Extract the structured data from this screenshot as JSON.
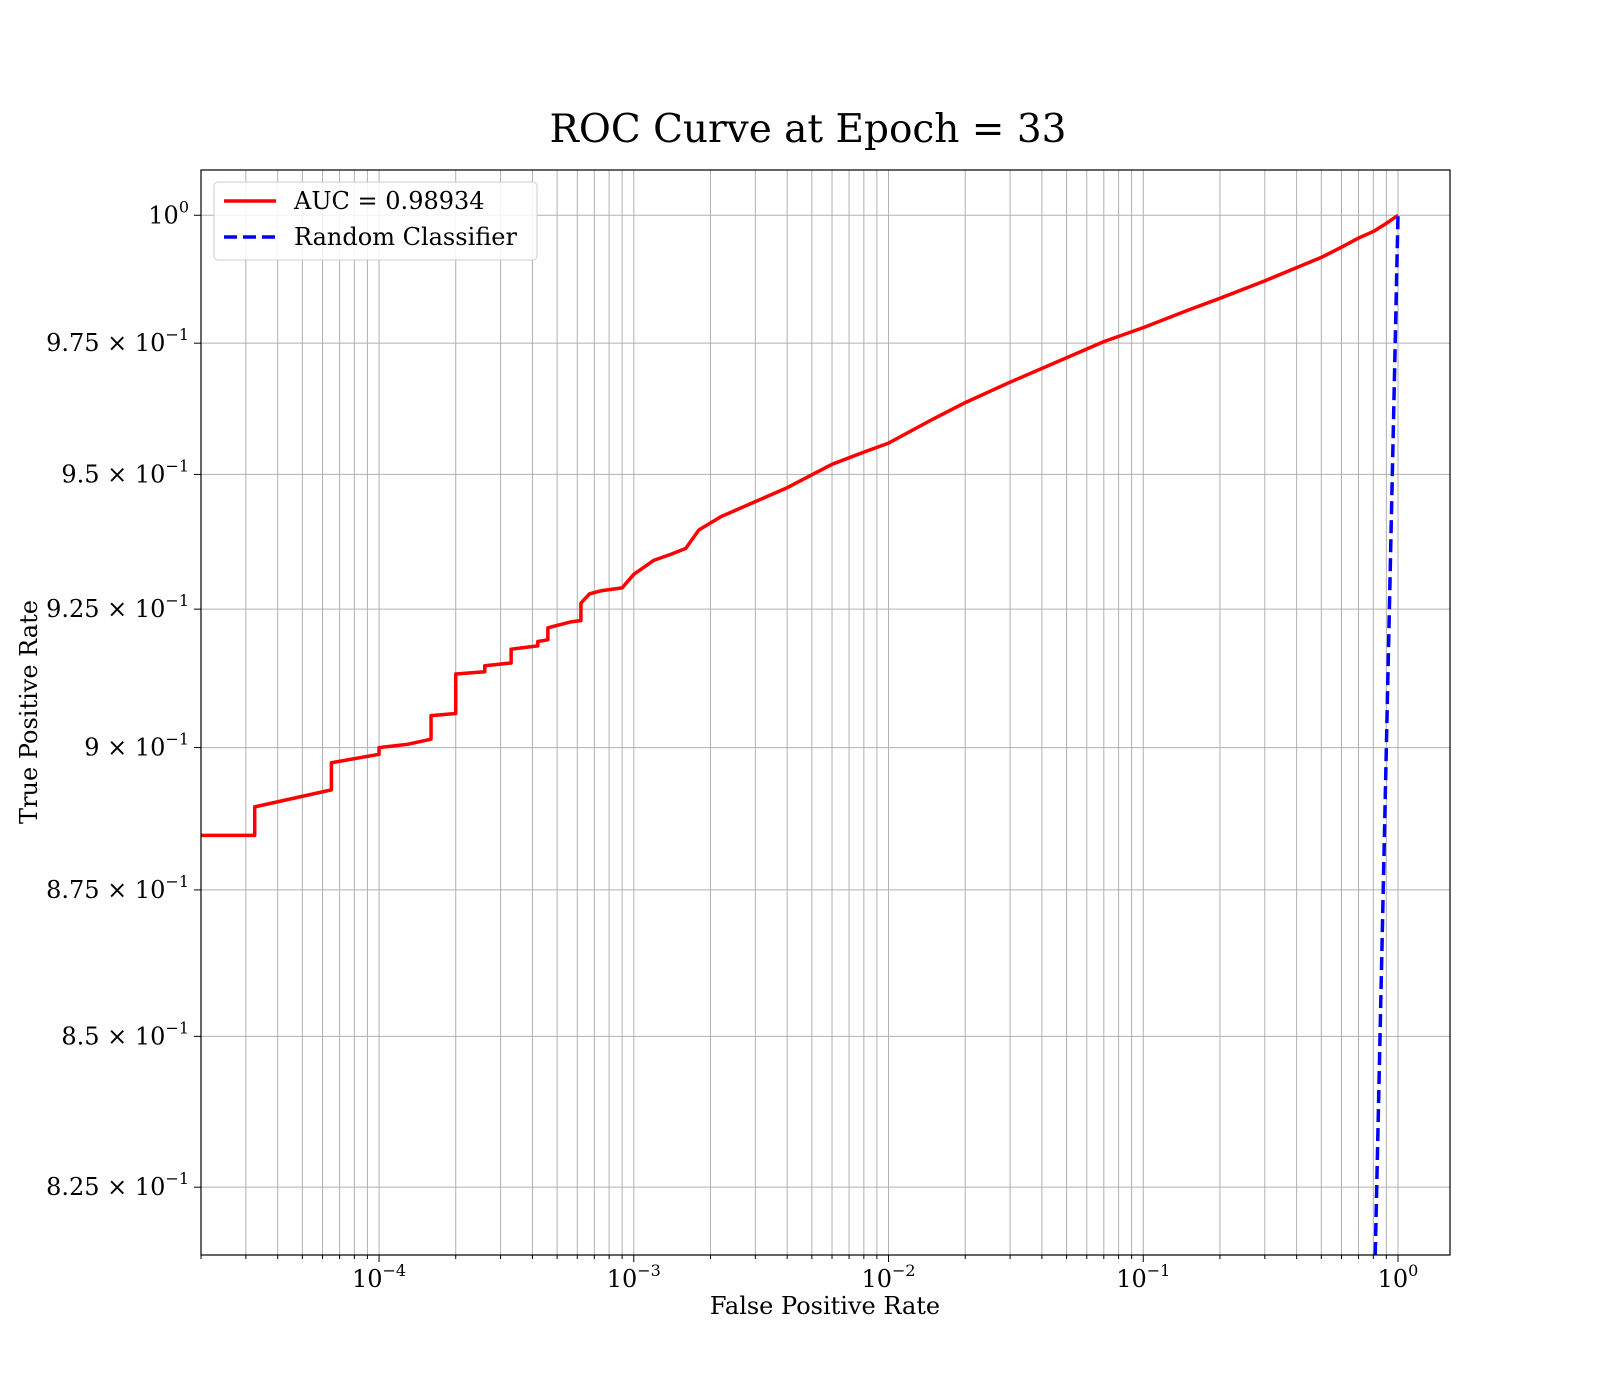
{
  "chart_data": {
    "type": "line",
    "title": "ROC Curve at Epoch = 33",
    "xlabel": "False Positive Rate",
    "ylabel": "True Positive Rate",
    "xscale": "log",
    "yscale": "log",
    "xlim": [
      2e-05,
      1.6
    ],
    "ylim": [
      0.814,
      1.009
    ],
    "grid": true,
    "grid_which": "both",
    "legend_position": "top-left",
    "x_ticks": [
      {
        "value": 0.0001,
        "mantissa": "10",
        "exponent": "−4"
      },
      {
        "value": 0.001,
        "mantissa": "10",
        "exponent": "−3"
      },
      {
        "value": 0.01,
        "mantissa": "10",
        "exponent": "−2"
      },
      {
        "value": 0.1,
        "mantissa": "10",
        "exponent": "−1"
      },
      {
        "value": 1,
        "mantissa": "10",
        "exponent": "0"
      }
    ],
    "y_ticks": [
      {
        "value": 0.825,
        "mantissa": "8.25 × 10",
        "exponent": "−1"
      },
      {
        "value": 0.85,
        "mantissa": "8.5 × 10",
        "exponent": "−1"
      },
      {
        "value": 0.875,
        "mantissa": "8.75 × 10",
        "exponent": "−1"
      },
      {
        "value": 0.9,
        "mantissa": "9 × 10",
        "exponent": "−1"
      },
      {
        "value": 0.925,
        "mantissa": "9.25 × 10",
        "exponent": "−1"
      },
      {
        "value": 0.95,
        "mantissa": "9.5 × 10",
        "exponent": "−1"
      },
      {
        "value": 0.975,
        "mantissa": "9.75 × 10",
        "exponent": "−1"
      },
      {
        "value": 1.0,
        "mantissa": "10",
        "exponent": "0"
      }
    ],
    "series": [
      {
        "name": "AUC = 0.98934",
        "color": "#ff0000",
        "style": "solid",
        "points": [
          [
            2e-05,
            0.8845
          ],
          [
            3.25e-05,
            0.8845
          ],
          [
            3.25e-05,
            0.8895
          ],
          [
            6.5e-05,
            0.8925
          ],
          [
            6.5e-05,
            0.8973
          ],
          [
            0.0001,
            0.8988
          ],
          [
            0.0001,
            0.9
          ],
          [
            0.00013,
            0.9006
          ],
          [
            0.00016,
            0.9015
          ],
          [
            0.00016,
            0.9057
          ],
          [
            0.0002,
            0.9061
          ],
          [
            0.0002,
            0.9132
          ],
          [
            0.00026,
            0.9136
          ],
          [
            0.00026,
            0.9147
          ],
          [
            0.00033,
            0.9152
          ],
          [
            0.00033,
            0.9177
          ],
          [
            0.00042,
            0.9183
          ],
          [
            0.00042,
            0.9191
          ],
          [
            0.00046,
            0.9194
          ],
          [
            0.00046,
            0.9216
          ],
          [
            0.00057,
            0.9227
          ],
          [
            0.00062,
            0.9229
          ],
          [
            0.00062,
            0.9261
          ],
          [
            0.00067,
            0.9278
          ],
          [
            0.00075,
            0.9284
          ],
          [
            0.0009,
            0.9289
          ],
          [
            0.001,
            0.9314
          ],
          [
            0.0012,
            0.934
          ],
          [
            0.0014,
            0.9351
          ],
          [
            0.0016,
            0.9362
          ],
          [
            0.0018,
            0.9396
          ],
          [
            0.0022,
            0.9421
          ],
          [
            0.003,
            0.9449
          ],
          [
            0.004,
            0.9475
          ],
          [
            0.006,
            0.9519
          ],
          [
            0.008,
            0.9542
          ],
          [
            0.01,
            0.9559
          ],
          [
            0.015,
            0.9605
          ],
          [
            0.02,
            0.9636
          ],
          [
            0.03,
            0.9675
          ],
          [
            0.05,
            0.9722
          ],
          [
            0.07,
            0.9753
          ],
          [
            0.1,
            0.978
          ],
          [
            0.15,
            0.9814
          ],
          [
            0.2,
            0.9837
          ],
          [
            0.3,
            0.9871
          ],
          [
            0.4,
            0.9897
          ],
          [
            0.5,
            0.9917
          ],
          [
            0.6,
            0.9937
          ],
          [
            0.7,
            0.9955
          ],
          [
            0.8,
            0.9968
          ],
          [
            0.9,
            0.9984
          ],
          [
            1.0,
            1.0
          ]
        ]
      },
      {
        "name": "Random Classifier",
        "color": "#0000ff",
        "style": "dashed",
        "points": [
          [
            0.814,
            0.814
          ],
          [
            1.0,
            1.0
          ]
        ]
      }
    ]
  }
}
